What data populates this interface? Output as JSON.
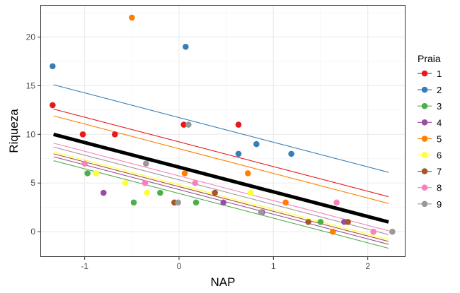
{
  "chart_data": {
    "type": "scatter",
    "title": "",
    "xlabel": "NAP",
    "ylabel": "Riqueza",
    "xlim": [
      -1.47,
      2.4
    ],
    "ylim": [
      -2.6,
      23.3
    ],
    "grid": true,
    "x_ticks": [
      -1,
      0,
      1,
      2
    ],
    "x_tick_labels": [
      "-1",
      "0",
      "1",
      "2"
    ],
    "y_ticks": [
      0,
      5,
      10,
      15,
      20
    ],
    "y_tick_labels": [
      "0",
      "5",
      "10",
      "15",
      "20"
    ],
    "legend_title": "Praia",
    "legend_position": "right",
    "series": [
      {
        "name": "1",
        "color": "#e41a1c",
        "line": {
          "x": [
            -1.33,
            2.22
          ],
          "y": [
            12.6,
            3.6
          ]
        },
        "points": [
          {
            "x": -1.34,
            "y": 13
          },
          {
            "x": -1.02,
            "y": 10
          },
          {
            "x": -0.68,
            "y": 10
          },
          {
            "x": 0.05,
            "y": 11
          },
          {
            "x": 0.63,
            "y": 11
          }
        ]
      },
      {
        "name": "2",
        "color": "#377eb8",
        "line": {
          "x": [
            -1.33,
            2.22
          ],
          "y": [
            15.1,
            6.1
          ]
        },
        "points": [
          {
            "x": -1.34,
            "y": 17
          },
          {
            "x": 0.07,
            "y": 19
          },
          {
            "x": 0.63,
            "y": 8
          },
          {
            "x": 0.82,
            "y": 9
          },
          {
            "x": 1.19,
            "y": 8
          }
        ]
      },
      {
        "name": "3",
        "color": "#4daf4a",
        "line": {
          "x": [
            -1.33,
            2.22
          ],
          "y": [
            7.3,
            -1.7
          ]
        },
        "points": [
          {
            "x": -0.97,
            "y": 6
          },
          {
            "x": -0.48,
            "y": 3
          },
          {
            "x": -0.2,
            "y": 4
          },
          {
            "x": 0.18,
            "y": 3
          },
          {
            "x": 1.5,
            "y": 1
          }
        ]
      },
      {
        "name": "4",
        "color": "#984ea3",
        "line": {
          "x": [
            -1.33,
            2.22
          ],
          "y": [
            7.7,
            -1.3
          ]
        },
        "points": [
          {
            "x": -0.8,
            "y": 4
          },
          {
            "x": 0.47,
            "y": 3
          },
          {
            "x": 0.88,
            "y": 2
          },
          {
            "x": 1.75,
            "y": 1
          }
        ]
      },
      {
        "name": "5",
        "color": "#ff7f00",
        "line": {
          "x": [
            -1.33,
            2.22
          ],
          "y": [
            11.9,
            2.9
          ]
        },
        "points": [
          {
            "x": -0.5,
            "y": 22
          },
          {
            "x": 0.06,
            "y": 6
          },
          {
            "x": 0.73,
            "y": 6
          },
          {
            "x": 1.13,
            "y": 3
          },
          {
            "x": 1.63,
            "y": 0
          }
        ]
      },
      {
        "name": "6",
        "color": "#ffff33",
        "line": {
          "x": [
            -1.33,
            2.22
          ],
          "y": [
            8.2,
            -0.8
          ]
        },
        "points": [
          {
            "x": -0.88,
            "y": 6
          },
          {
            "x": -0.57,
            "y": 5
          },
          {
            "x": -0.34,
            "y": 4
          },
          {
            "x": 0.76,
            "y": 4
          }
        ]
      },
      {
        "name": "7",
        "color": "#a65628",
        "line": {
          "x": [
            -1.33,
            2.22
          ],
          "y": [
            8.0,
            -1.0
          ]
        },
        "points": [
          {
            "x": -0.05,
            "y": 3
          },
          {
            "x": 0.38,
            "y": 4
          },
          {
            "x": 1.37,
            "y": 1
          },
          {
            "x": 1.79,
            "y": 1
          }
        ]
      },
      {
        "name": "8",
        "color": "#f781bf",
        "line": {
          "x": [
            -1.33,
            2.22
          ],
          "y": [
            9.1,
            0.1
          ]
        },
        "points": [
          {
            "x": -1.0,
            "y": 7
          },
          {
            "x": -0.36,
            "y": 5
          },
          {
            "x": 0.17,
            "y": 5
          },
          {
            "x": 1.67,
            "y": 3
          },
          {
            "x": 2.06,
            "y": 0
          }
        ]
      },
      {
        "name": "9",
        "color": "#999999",
        "line": {
          "x": [
            -1.33,
            2.22
          ],
          "y": [
            8.7,
            -0.3
          ]
        },
        "points": [
          {
            "x": -0.35,
            "y": 7
          },
          {
            "x": -0.01,
            "y": 3
          },
          {
            "x": 0.1,
            "y": 11
          },
          {
            "x": 0.87,
            "y": 2
          },
          {
            "x": 2.26,
            "y": 0
          }
        ]
      }
    ],
    "population_line": {
      "color": "#000000",
      "x": [
        -1.33,
        2.22
      ],
      "y": [
        10.0,
        1.0
      ]
    }
  }
}
